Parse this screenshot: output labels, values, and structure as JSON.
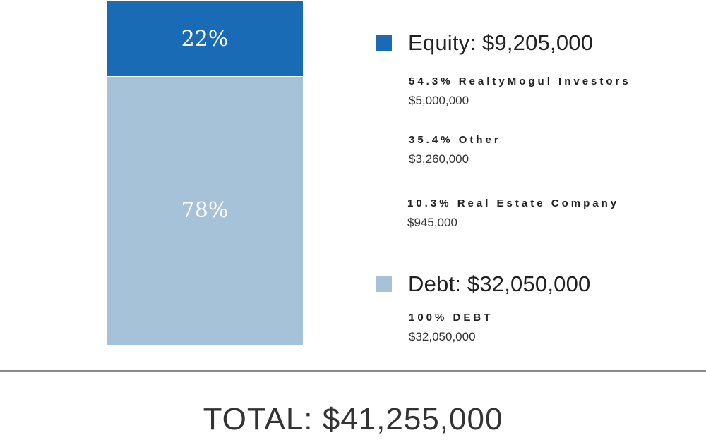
{
  "chart_data": {
    "type": "bar",
    "stacked": true,
    "series": [
      {
        "name": "Equity",
        "value": 22,
        "label": "22%",
        "color": "#1a6bb6"
      },
      {
        "name": "Debt",
        "value": 78,
        "label": "78%",
        "color": "#a5c2d8"
      }
    ]
  },
  "legend": {
    "equity": {
      "title": "Equity: $9,205,000",
      "color": "#1a6bb6",
      "items": [
        {
          "label": "54.3% RealtyMogul Investors",
          "amount": "$5,000,000"
        },
        {
          "label": "35.4% Other",
          "amount": "$3,260,000"
        },
        {
          "label": "10.3% Real Estate Company",
          "amount": "$945,000"
        }
      ]
    },
    "debt": {
      "title": "Debt: $32,050,000",
      "color": "#a5c2d8",
      "items": [
        {
          "label": "100% DEBT",
          "amount": "$32,050,000"
        }
      ]
    }
  },
  "total": "TOTAL: $41,255,000"
}
